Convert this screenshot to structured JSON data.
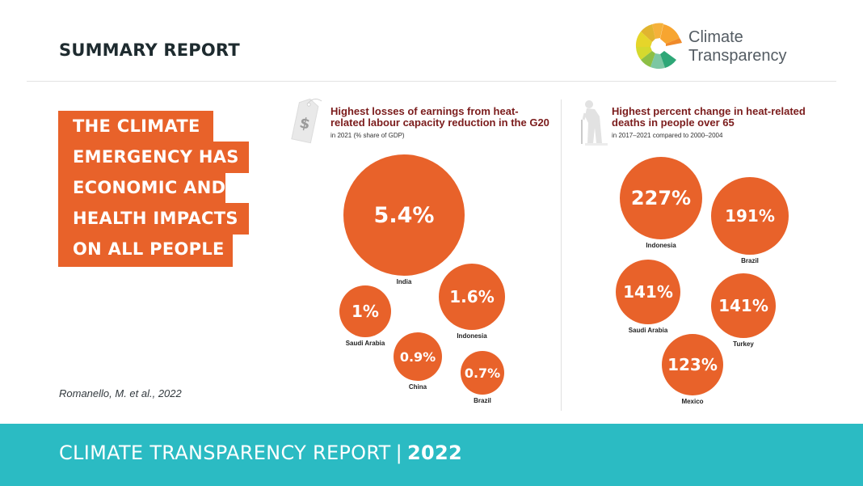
{
  "header": {
    "title": "SUMMARY REPORT",
    "logo_line1": "Climate",
    "logo_line2": "Transparency"
  },
  "headline": {
    "lines": [
      "THE CLIMATE",
      "EMERGENCY HAS",
      "ECONOMIC AND",
      "HEALTH IMPACTS",
      "ON ALL PEOPLE"
    ]
  },
  "citation": "Romanello, M. et al., 2022",
  "footer": {
    "text": "CLIMATE TRANSPARENCY REPORT",
    "separator": "|",
    "year": "2022"
  },
  "colors": {
    "accent": "#e8622a",
    "title_red": "#7b1c1c",
    "footer_teal": "#2bbbc3"
  },
  "icons": {
    "left_panel": "price-tag-dollar-icon",
    "right_panel": "elderly-person-cane-icon"
  },
  "chart_data": [
    {
      "type": "bubble",
      "title": "Highest losses of earnings from heat-related labour capacity reduction in the G20",
      "subtitle": "in 2021 (% share of GDP)",
      "categories": [
        "India",
        "Indonesia",
        "Saudi Arabia",
        "China",
        "Brazil"
      ],
      "values": [
        5.4,
        1.6,
        1.0,
        0.9,
        0.7
      ],
      "value_labels": [
        "5.4%",
        "1.6%",
        "1%",
        "0.9%",
        "0.7%"
      ],
      "unit": "% share of GDP"
    },
    {
      "type": "bubble",
      "title": "Highest percent change in heat-related deaths in people over 65",
      "subtitle": "in 2017–2021 compared to 2000–2004",
      "categories": [
        "Indonesia",
        "Brazil",
        "Saudi Arabia",
        "Turkey",
        "Mexico"
      ],
      "values": [
        227,
        191,
        141,
        141,
        123
      ],
      "value_labels": [
        "227%",
        "191%",
        "141%",
        "141%",
        "123%"
      ],
      "unit": "% change"
    }
  ]
}
